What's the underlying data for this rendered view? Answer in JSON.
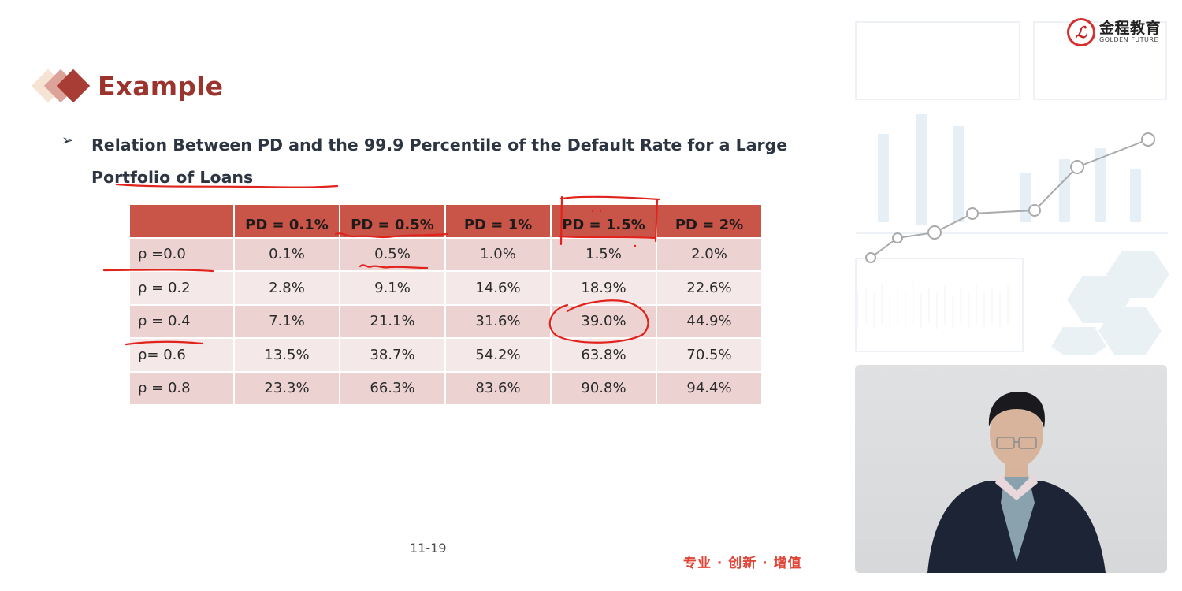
{
  "slide": {
    "title": "Example",
    "bullet": "Relation Between PD and the 99.9 Percentile of the Default Rate for a Large Portfolio of Loans",
    "table": {
      "headers": [
        "",
        "PD = 0.1%",
        "PD = 0.5%",
        "PD = 1%",
        "PD = 1.5%",
        "PD = 2%"
      ],
      "rows": [
        [
          "ρ =0.0",
          "0.1%",
          "0.5%",
          "1.0%",
          "1.5%",
          "2.0%"
        ],
        [
          "ρ = 0.2",
          "2.8%",
          "9.1%",
          "14.6%",
          "18.9%",
          "22.6%"
        ],
        [
          "ρ = 0.4",
          "7.1%",
          "21.1%",
          "31.6%",
          "39.0%",
          "44.9%"
        ],
        [
          "ρ= 0.6",
          "13.5%",
          "38.7%",
          "54.2%",
          "63.8%",
          "70.5%"
        ],
        [
          "ρ = 0.8",
          "23.3%",
          "66.3%",
          "83.6%",
          "90.8%",
          "94.4%"
        ]
      ]
    },
    "page_number": "11-19",
    "slogan": "专业 · 创新 · 增值"
  },
  "logo": {
    "name_cn": "金程教育",
    "name_en": "GOLDEN FUTURE"
  },
  "colors": {
    "title": "#9b342d",
    "header_fill": "#c85548",
    "row_odd": "#ecd3d2",
    "row_even": "#f5e8e8",
    "annotation_ink": "#e0231c",
    "slogan": "#e04538"
  },
  "icons": {
    "bullet": "arrowhead-bullet-icon",
    "title_mark": "stacked-diamonds-icon",
    "logo_seal": "golden-future-seal-icon"
  }
}
